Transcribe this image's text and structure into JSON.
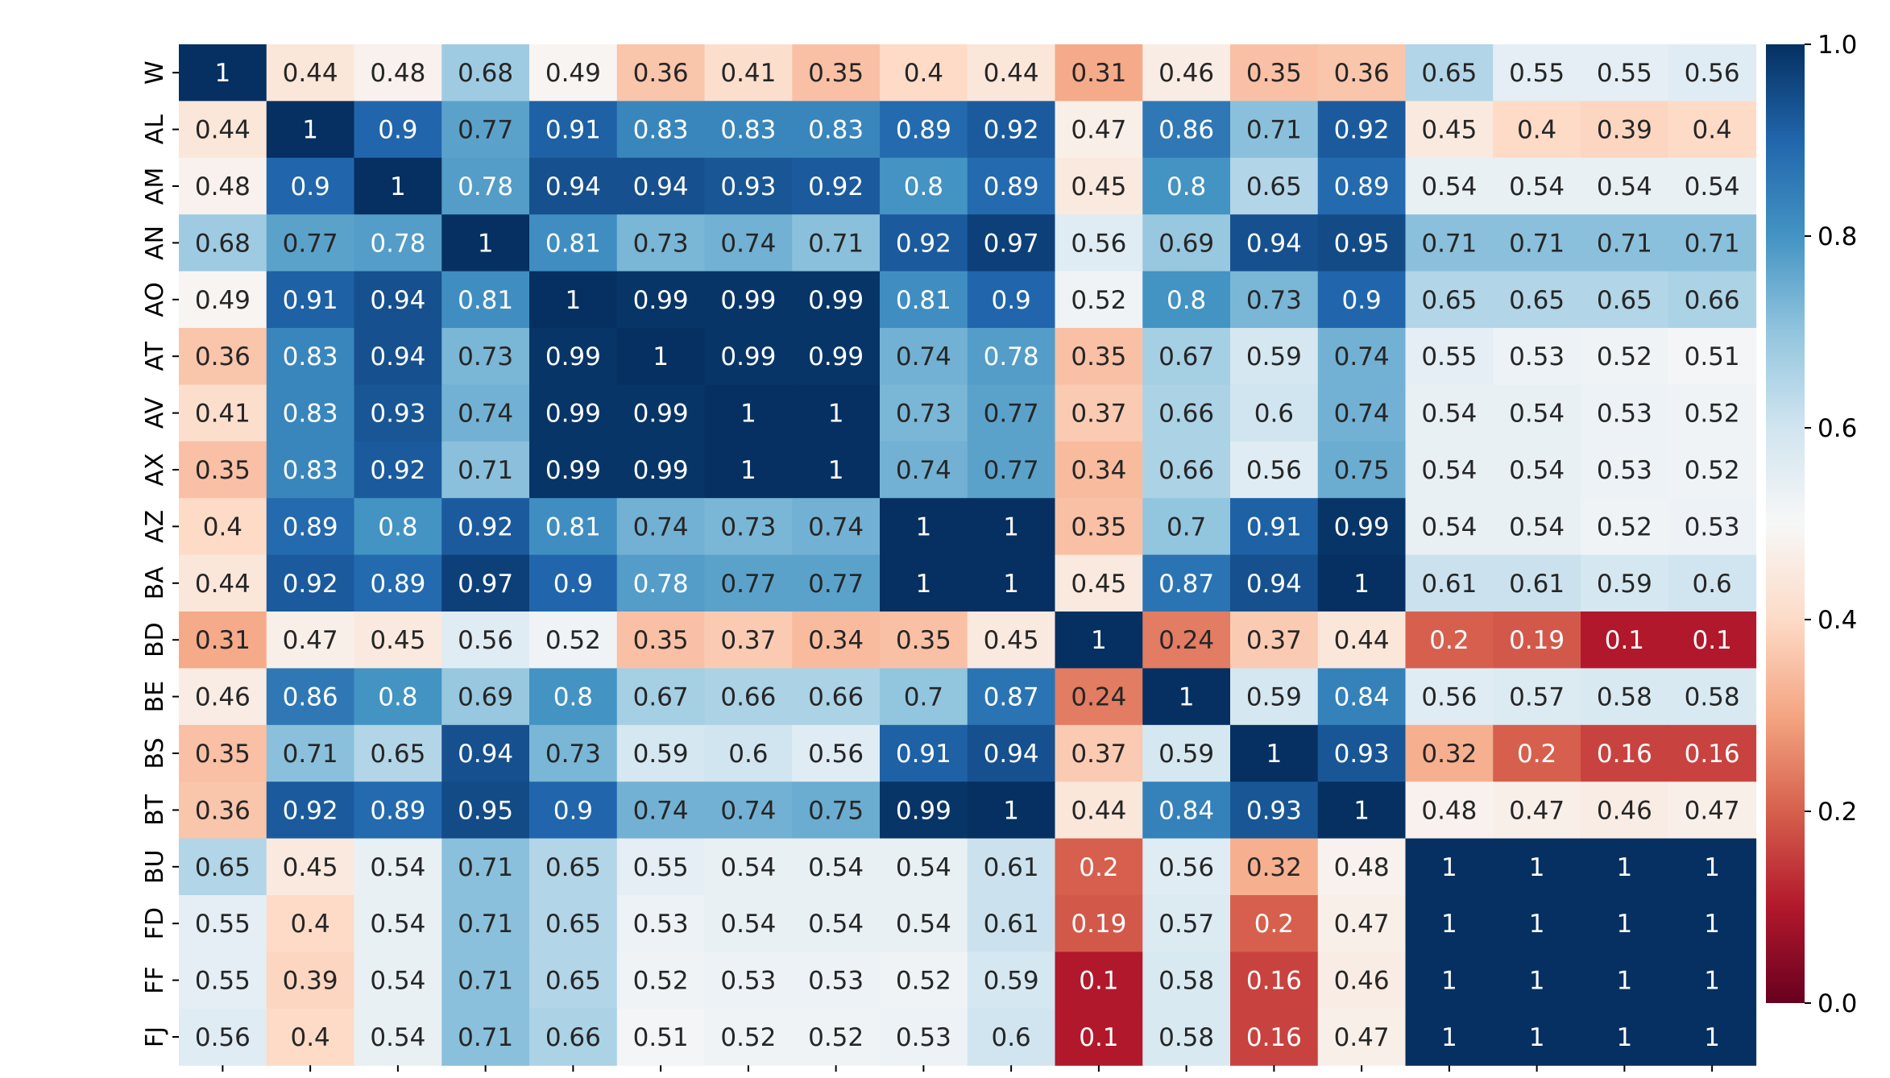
{
  "chart_data": {
    "type": "heatmap",
    "title": "",
    "xlabel": "",
    "ylabel": "",
    "labels": [
      "W",
      "AL",
      "AM",
      "AN",
      "AO",
      "AT",
      "AV",
      "AX",
      "AZ",
      "BA",
      "BD",
      "BE",
      "BS",
      "BT",
      "BU",
      "FD",
      "FF",
      "FJ"
    ],
    "matrix": [
      [
        "1",
        "0.44",
        "0.48",
        "0.68",
        "0.49",
        "0.36",
        "0.41",
        "0.35",
        "0.4",
        "0.44",
        "0.31",
        "0.46",
        "0.35",
        "0.36",
        "0.65",
        "0.55",
        "0.55",
        "0.56"
      ],
      [
        "0.44",
        "1",
        "0.9",
        "0.77",
        "0.91",
        "0.83",
        "0.83",
        "0.83",
        "0.89",
        "0.92",
        "0.47",
        "0.86",
        "0.71",
        "0.92",
        "0.45",
        "0.4",
        "0.39",
        "0.4"
      ],
      [
        "0.48",
        "0.9",
        "1",
        "0.78",
        "0.94",
        "0.94",
        "0.93",
        "0.92",
        "0.8",
        "0.89",
        "0.45",
        "0.8",
        "0.65",
        "0.89",
        "0.54",
        "0.54",
        "0.54",
        "0.54"
      ],
      [
        "0.68",
        "0.77",
        "0.78",
        "1",
        "0.81",
        "0.73",
        "0.74",
        "0.71",
        "0.92",
        "0.97",
        "0.56",
        "0.69",
        "0.94",
        "0.95",
        "0.71",
        "0.71",
        "0.71",
        "0.71"
      ],
      [
        "0.49",
        "0.91",
        "0.94",
        "0.81",
        "1",
        "0.99",
        "0.99",
        "0.99",
        "0.81",
        "0.9",
        "0.52",
        "0.8",
        "0.73",
        "0.9",
        "0.65",
        "0.65",
        "0.65",
        "0.66"
      ],
      [
        "0.36",
        "0.83",
        "0.94",
        "0.73",
        "0.99",
        "1",
        "0.99",
        "0.99",
        "0.74",
        "0.78",
        "0.35",
        "0.67",
        "0.59",
        "0.74",
        "0.55",
        "0.53",
        "0.52",
        "0.51"
      ],
      [
        "0.41",
        "0.83",
        "0.93",
        "0.74",
        "0.99",
        "0.99",
        "1",
        "1",
        "0.73",
        "0.77",
        "0.37",
        "0.66",
        "0.6",
        "0.74",
        "0.54",
        "0.54",
        "0.53",
        "0.52"
      ],
      [
        "0.35",
        "0.83",
        "0.92",
        "0.71",
        "0.99",
        "0.99",
        "1",
        "1",
        "0.74",
        "0.77",
        "0.34",
        "0.66",
        "0.56",
        "0.75",
        "0.54",
        "0.54",
        "0.53",
        "0.52"
      ],
      [
        "0.4",
        "0.89",
        "0.8",
        "0.92",
        "0.81",
        "0.74",
        "0.73",
        "0.74",
        "1",
        "1",
        "0.35",
        "0.7",
        "0.91",
        "0.99",
        "0.54",
        "0.54",
        "0.52",
        "0.53"
      ],
      [
        "0.44",
        "0.92",
        "0.89",
        "0.97",
        "0.9",
        "0.78",
        "0.77",
        "0.77",
        "1",
        "1",
        "0.45",
        "0.87",
        "0.94",
        "1",
        "0.61",
        "0.61",
        "0.59",
        "0.6"
      ],
      [
        "0.31",
        "0.47",
        "0.45",
        "0.56",
        "0.52",
        "0.35",
        "0.37",
        "0.34",
        "0.35",
        "0.45",
        "1",
        "0.24",
        "0.37",
        "0.44",
        "0.2",
        "0.19",
        "0.1",
        "0.1"
      ],
      [
        "0.46",
        "0.86",
        "0.8",
        "0.69",
        "0.8",
        "0.67",
        "0.66",
        "0.66",
        "0.7",
        "0.87",
        "0.24",
        "1",
        "0.59",
        "0.84",
        "0.56",
        "0.57",
        "0.58",
        "0.58"
      ],
      [
        "0.35",
        "0.71",
        "0.65",
        "0.94",
        "0.73",
        "0.59",
        "0.6",
        "0.56",
        "0.91",
        "0.94",
        "0.37",
        "0.59",
        "1",
        "0.93",
        "0.32",
        "0.2",
        "0.16",
        "0.16"
      ],
      [
        "0.36",
        "0.92",
        "0.89",
        "0.95",
        "0.9",
        "0.74",
        "0.74",
        "0.75",
        "0.99",
        "1",
        "0.44",
        "0.84",
        "0.93",
        "1",
        "0.48",
        "0.47",
        "0.46",
        "0.47"
      ],
      [
        "0.65",
        "0.45",
        "0.54",
        "0.71",
        "0.65",
        "0.55",
        "0.54",
        "0.54",
        "0.54",
        "0.61",
        "0.2",
        "0.56",
        "0.32",
        "0.48",
        "1",
        "1",
        "1",
        "1"
      ],
      [
        "0.55",
        "0.4",
        "0.54",
        "0.71",
        "0.65",
        "0.53",
        "0.54",
        "0.54",
        "0.54",
        "0.61",
        "0.19",
        "0.57",
        "0.2",
        "0.47",
        "1",
        "1",
        "1",
        "1"
      ],
      [
        "0.55",
        "0.39",
        "0.54",
        "0.71",
        "0.65",
        "0.52",
        "0.53",
        "0.53",
        "0.52",
        "0.59",
        "0.1",
        "0.58",
        "0.16",
        "0.46",
        "1",
        "1",
        "1",
        "1"
      ],
      [
        "0.56",
        "0.4",
        "0.54",
        "0.71",
        "0.66",
        "0.51",
        "0.52",
        "0.52",
        "0.53",
        "0.6",
        "0.1",
        "0.58",
        "0.16",
        "0.47",
        "1",
        "1",
        "1",
        "1"
      ]
    ],
    "colorbar": {
      "range": [
        0.0,
        1.0
      ],
      "ticks": [
        "0.0",
        "0.2",
        "0.4",
        "0.6",
        "0.8",
        "1.0"
      ],
      "colormap": "RdBu",
      "stops": [
        "#67001f",
        "#b2182b",
        "#d6604d",
        "#f4a582",
        "#fddbc7",
        "#f7f7f7",
        "#d1e5f0",
        "#92c5de",
        "#4393c3",
        "#2166ac",
        "#053061"
      ]
    },
    "grid": false
  }
}
